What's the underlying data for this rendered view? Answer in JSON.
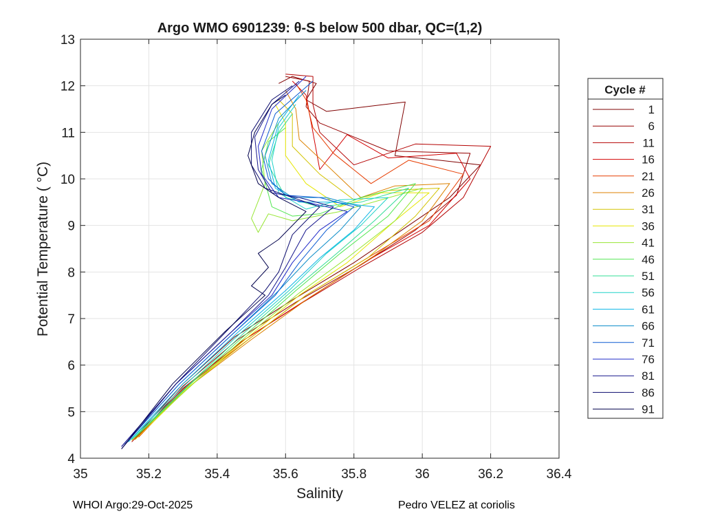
{
  "chart_data": {
    "type": "line",
    "title": "Argo WMO 6901239: θ-S below 500 dbar,  QC=(1,2)",
    "xlabel": "Salinity",
    "ylabel": "Potential Temperature ( °C)",
    "xlim": [
      35,
      36.4
    ],
    "ylim": [
      4,
      13
    ],
    "xticks": [
      35,
      35.2,
      35.4,
      35.6,
      35.8,
      36,
      36.2,
      36.4
    ],
    "xtick_labels": [
      "35",
      "35.2",
      "35.4",
      "35.6",
      "35.8",
      "36",
      "36.2",
      "36.4"
    ],
    "yticks": [
      4,
      5,
      6,
      7,
      8,
      9,
      10,
      11,
      12,
      13
    ],
    "ytick_labels": [
      "4",
      "5",
      "6",
      "7",
      "8",
      "9",
      "10",
      "11",
      "12",
      "13"
    ],
    "grid": true,
    "legend_title": "Cycle #",
    "legend_position": "outside-right",
    "series": [
      {
        "name": "1",
        "color": "#7f0000",
        "points": [
          [
            35.16,
            4.45
          ],
          [
            35.3,
            5.6
          ],
          [
            35.45,
            6.6
          ],
          [
            35.62,
            7.4
          ],
          [
            35.8,
            8.2
          ],
          [
            35.95,
            8.95
          ],
          [
            36.08,
            9.6
          ],
          [
            36.17,
            10.3
          ],
          [
            36.05,
            10.4
          ],
          [
            35.92,
            10.5
          ],
          [
            35.95,
            11.65
          ],
          [
            35.72,
            11.45
          ],
          [
            35.66,
            11.7
          ],
          [
            35.69,
            12.05
          ],
          [
            35.62,
            12.2
          ],
          [
            35.58,
            12.05
          ]
        ]
      },
      {
        "name": "6",
        "color": "#960000",
        "points": [
          [
            35.16,
            4.4
          ],
          [
            35.3,
            5.55
          ],
          [
            35.46,
            6.55
          ],
          [
            35.63,
            7.35
          ],
          [
            35.82,
            8.15
          ],
          [
            35.98,
            8.9
          ],
          [
            36.1,
            9.65
          ],
          [
            36.14,
            10.55
          ],
          [
            35.9,
            10.6
          ],
          [
            35.7,
            11.2
          ],
          [
            35.66,
            11.55
          ],
          [
            35.67,
            12.1
          ],
          [
            35.6,
            12.2
          ]
        ]
      },
      {
        "name": "11",
        "color": "#b40000",
        "points": [
          [
            35.15,
            4.35
          ],
          [
            35.3,
            5.5
          ],
          [
            35.47,
            6.5
          ],
          [
            35.64,
            7.3
          ],
          [
            35.82,
            8.1
          ],
          [
            36.0,
            8.85
          ],
          [
            36.12,
            9.6
          ],
          [
            36.2,
            10.7
          ],
          [
            35.98,
            10.75
          ],
          [
            35.8,
            10.3
          ],
          [
            35.7,
            11.0
          ],
          [
            35.68,
            11.6
          ],
          [
            35.68,
            12.2
          ],
          [
            35.6,
            12.25
          ]
        ]
      },
      {
        "name": "16",
        "color": "#d20000",
        "points": [
          [
            35.16,
            4.4
          ],
          [
            35.31,
            5.55
          ],
          [
            35.48,
            6.55
          ],
          [
            35.66,
            7.4
          ],
          [
            35.84,
            8.25
          ],
          [
            36.02,
            9.0
          ],
          [
            36.14,
            10.0
          ],
          [
            36.1,
            10.55
          ],
          [
            35.9,
            10.45
          ],
          [
            35.78,
            10.95
          ],
          [
            35.7,
            10.2
          ],
          [
            35.66,
            11.8
          ],
          [
            35.62,
            12.1
          ]
        ]
      },
      {
        "name": "21",
        "color": "#e63c00",
        "points": [
          [
            35.17,
            4.45
          ],
          [
            35.32,
            5.6
          ],
          [
            35.5,
            6.6
          ],
          [
            35.66,
            7.5
          ],
          [
            35.85,
            8.35
          ],
          [
            36.02,
            9.1
          ],
          [
            36.12,
            10.1
          ],
          [
            35.96,
            10.4
          ],
          [
            35.85,
            9.9
          ],
          [
            35.74,
            10.55
          ],
          [
            35.68,
            11.1
          ],
          [
            35.66,
            11.7
          ],
          [
            35.63,
            12.05
          ]
        ]
      },
      {
        "name": "26",
        "color": "#dc8200",
        "points": [
          [
            35.16,
            4.4
          ],
          [
            35.32,
            5.55
          ],
          [
            35.5,
            6.55
          ],
          [
            35.67,
            7.45
          ],
          [
            35.86,
            8.35
          ],
          [
            36.0,
            9.1
          ],
          [
            36.08,
            9.9
          ],
          [
            35.92,
            9.85
          ],
          [
            35.82,
            9.6
          ],
          [
            35.72,
            10.3
          ],
          [
            35.64,
            10.85
          ],
          [
            35.63,
            11.5
          ],
          [
            35.6,
            11.9
          ]
        ]
      },
      {
        "name": "31",
        "color": "#d2c300",
        "points": [
          [
            35.15,
            4.38
          ],
          [
            35.32,
            5.55
          ],
          [
            35.5,
            6.6
          ],
          [
            35.66,
            7.5
          ],
          [
            35.84,
            8.3
          ],
          [
            35.98,
            9.2
          ],
          [
            36.05,
            9.8
          ],
          [
            35.9,
            9.75
          ],
          [
            35.8,
            9.55
          ],
          [
            35.7,
            10.1
          ],
          [
            35.62,
            10.7
          ],
          [
            35.62,
            11.4
          ],
          [
            35.58,
            11.7
          ]
        ]
      },
      {
        "name": "36",
        "color": "#e6e600",
        "points": [
          [
            35.16,
            4.4
          ],
          [
            35.32,
            5.55
          ],
          [
            35.49,
            6.6
          ],
          [
            35.64,
            7.5
          ],
          [
            35.78,
            8.2
          ],
          [
            35.92,
            9.1
          ],
          [
            36.02,
            9.7
          ],
          [
            35.88,
            9.7
          ],
          [
            35.76,
            9.4
          ],
          [
            35.66,
            9.9
          ],
          [
            35.6,
            10.5
          ],
          [
            35.6,
            11.2
          ],
          [
            35.57,
            11.6
          ]
        ]
      },
      {
        "name": "41",
        "color": "#96e632",
        "points": [
          [
            35.16,
            4.45
          ],
          [
            35.33,
            5.6
          ],
          [
            35.49,
            6.65
          ],
          [
            35.64,
            7.55
          ],
          [
            35.78,
            8.3
          ],
          [
            35.92,
            9.1
          ],
          [
            36.0,
            9.8
          ],
          [
            35.76,
            9.3
          ],
          [
            35.62,
            9.1
          ],
          [
            35.55,
            9.25
          ],
          [
            35.52,
            8.85
          ],
          [
            35.5,
            9.15
          ],
          [
            35.54,
            9.9
          ],
          [
            35.53,
            10.6
          ],
          [
            35.55,
            10.85
          ],
          [
            35.58,
            11.2
          ]
        ]
      },
      {
        "name": "46",
        "color": "#50e650",
        "points": [
          [
            35.16,
            4.45
          ],
          [
            35.33,
            5.65
          ],
          [
            35.49,
            6.7
          ],
          [
            35.63,
            7.6
          ],
          [
            35.76,
            8.4
          ],
          [
            35.9,
            9.2
          ],
          [
            35.98,
            9.9
          ],
          [
            35.82,
            9.6
          ],
          [
            35.7,
            9.25
          ],
          [
            35.62,
            9.2
          ],
          [
            35.56,
            9.4
          ],
          [
            35.53,
            10.2
          ],
          [
            35.55,
            10.8
          ],
          [
            35.6,
            11.1
          ]
        ]
      },
      {
        "name": "51",
        "color": "#32dc96",
        "points": [
          [
            35.15,
            4.4
          ],
          [
            35.32,
            5.6
          ],
          [
            35.48,
            6.7
          ],
          [
            35.62,
            7.6
          ],
          [
            35.75,
            8.4
          ],
          [
            35.86,
            9.1
          ],
          [
            35.96,
            9.8
          ],
          [
            35.82,
            9.5
          ],
          [
            35.7,
            9.4
          ],
          [
            35.6,
            9.6
          ],
          [
            35.55,
            10.3
          ],
          [
            35.58,
            11.0
          ],
          [
            35.62,
            11.4
          ]
        ]
      },
      {
        "name": "56",
        "color": "#1ed2c8",
        "points": [
          [
            35.14,
            4.35
          ],
          [
            35.31,
            5.6
          ],
          [
            35.47,
            6.7
          ],
          [
            35.61,
            7.6
          ],
          [
            35.72,
            8.4
          ],
          [
            35.82,
            9.0
          ],
          [
            35.9,
            9.6
          ],
          [
            35.76,
            9.55
          ],
          [
            35.66,
            9.35
          ],
          [
            35.58,
            9.7
          ],
          [
            35.56,
            10.4
          ],
          [
            35.58,
            11.1
          ],
          [
            35.63,
            11.6
          ]
        ]
      },
      {
        "name": "61",
        "color": "#0ab4e6",
        "points": [
          [
            35.14,
            4.35
          ],
          [
            35.3,
            5.6
          ],
          [
            35.46,
            6.7
          ],
          [
            35.6,
            7.6
          ],
          [
            35.7,
            8.3
          ],
          [
            35.8,
            8.9
          ],
          [
            35.86,
            9.4
          ],
          [
            35.74,
            9.5
          ],
          [
            35.64,
            9.5
          ],
          [
            35.57,
            9.8
          ],
          [
            35.55,
            10.4
          ],
          [
            35.58,
            11.2
          ],
          [
            35.64,
            11.8
          ]
        ]
      },
      {
        "name": "66",
        "color": "#0a8cc8",
        "points": [
          [
            35.13,
            4.3
          ],
          [
            35.29,
            5.6
          ],
          [
            35.45,
            6.7
          ],
          [
            35.58,
            7.6
          ],
          [
            35.67,
            8.3
          ],
          [
            35.76,
            8.9
          ],
          [
            35.82,
            9.4
          ],
          [
            35.72,
            9.6
          ],
          [
            35.62,
            9.6
          ],
          [
            35.56,
            9.9
          ],
          [
            35.54,
            10.5
          ],
          [
            35.58,
            11.3
          ],
          [
            35.66,
            11.9
          ]
        ]
      },
      {
        "name": "71",
        "color": "#0a5ad2",
        "points": [
          [
            35.13,
            4.3
          ],
          [
            35.29,
            5.6
          ],
          [
            35.45,
            6.7
          ],
          [
            35.57,
            7.5
          ],
          [
            35.64,
            8.2
          ],
          [
            35.72,
            8.9
          ],
          [
            35.8,
            9.4
          ],
          [
            35.7,
            9.6
          ],
          [
            35.6,
            9.65
          ],
          [
            35.55,
            10.0
          ],
          [
            35.53,
            10.6
          ],
          [
            35.57,
            11.4
          ],
          [
            35.68,
            12.1
          ]
        ]
      },
      {
        "name": "76",
        "color": "#1e28c8",
        "points": [
          [
            35.12,
            4.25
          ],
          [
            35.28,
            5.6
          ],
          [
            35.44,
            6.7
          ],
          [
            35.56,
            7.5
          ],
          [
            35.62,
            8.2
          ],
          [
            35.7,
            8.9
          ],
          [
            35.78,
            9.3
          ],
          [
            35.66,
            9.5
          ],
          [
            35.58,
            9.6
          ],
          [
            35.53,
            10.1
          ],
          [
            35.52,
            10.7
          ],
          [
            35.56,
            11.5
          ],
          [
            35.66,
            12.2
          ]
        ]
      },
      {
        "name": "81",
        "color": "#14148c",
        "points": [
          [
            35.12,
            4.25
          ],
          [
            35.28,
            5.6
          ],
          [
            35.44,
            6.7
          ],
          [
            35.55,
            7.5
          ],
          [
            35.6,
            8.1
          ],
          [
            35.66,
            8.9
          ],
          [
            35.74,
            9.4
          ],
          [
            35.64,
            9.6
          ],
          [
            35.56,
            9.7
          ],
          [
            35.52,
            10.2
          ],
          [
            35.51,
            10.9
          ],
          [
            35.56,
            11.6
          ],
          [
            35.64,
            12.1
          ]
        ]
      },
      {
        "name": "86",
        "color": "#0a0a6e",
        "points": [
          [
            35.12,
            4.2
          ],
          [
            35.28,
            5.6
          ],
          [
            35.43,
            6.75
          ],
          [
            35.54,
            7.6
          ],
          [
            35.58,
            8.0
          ],
          [
            35.62,
            8.8
          ],
          [
            35.7,
            9.4
          ],
          [
            35.6,
            9.65
          ],
          [
            35.54,
            9.8
          ],
          [
            35.5,
            10.3
          ],
          [
            35.5,
            11.0
          ],
          [
            35.56,
            11.7
          ],
          [
            35.62,
            12.0
          ]
        ]
      },
      {
        "name": "91",
        "color": "#00004b",
        "points": [
          [
            35.12,
            4.2
          ],
          [
            35.27,
            5.6
          ],
          [
            35.42,
            6.7
          ],
          [
            35.54,
            7.5
          ],
          [
            35.5,
            7.7
          ],
          [
            35.55,
            8.1
          ],
          [
            35.52,
            8.4
          ],
          [
            35.58,
            8.7
          ],
          [
            35.66,
            9.3
          ],
          [
            35.58,
            9.6
          ],
          [
            35.52,
            9.9
          ],
          [
            35.49,
            10.5
          ],
          [
            35.51,
            11.0
          ],
          [
            35.56,
            11.6
          ],
          [
            35.6,
            11.8
          ]
        ]
      }
    ]
  },
  "footer": {
    "left": "WHOI Argo:29-Oct-2025",
    "right": "Pedro VELEZ at coriolis"
  }
}
